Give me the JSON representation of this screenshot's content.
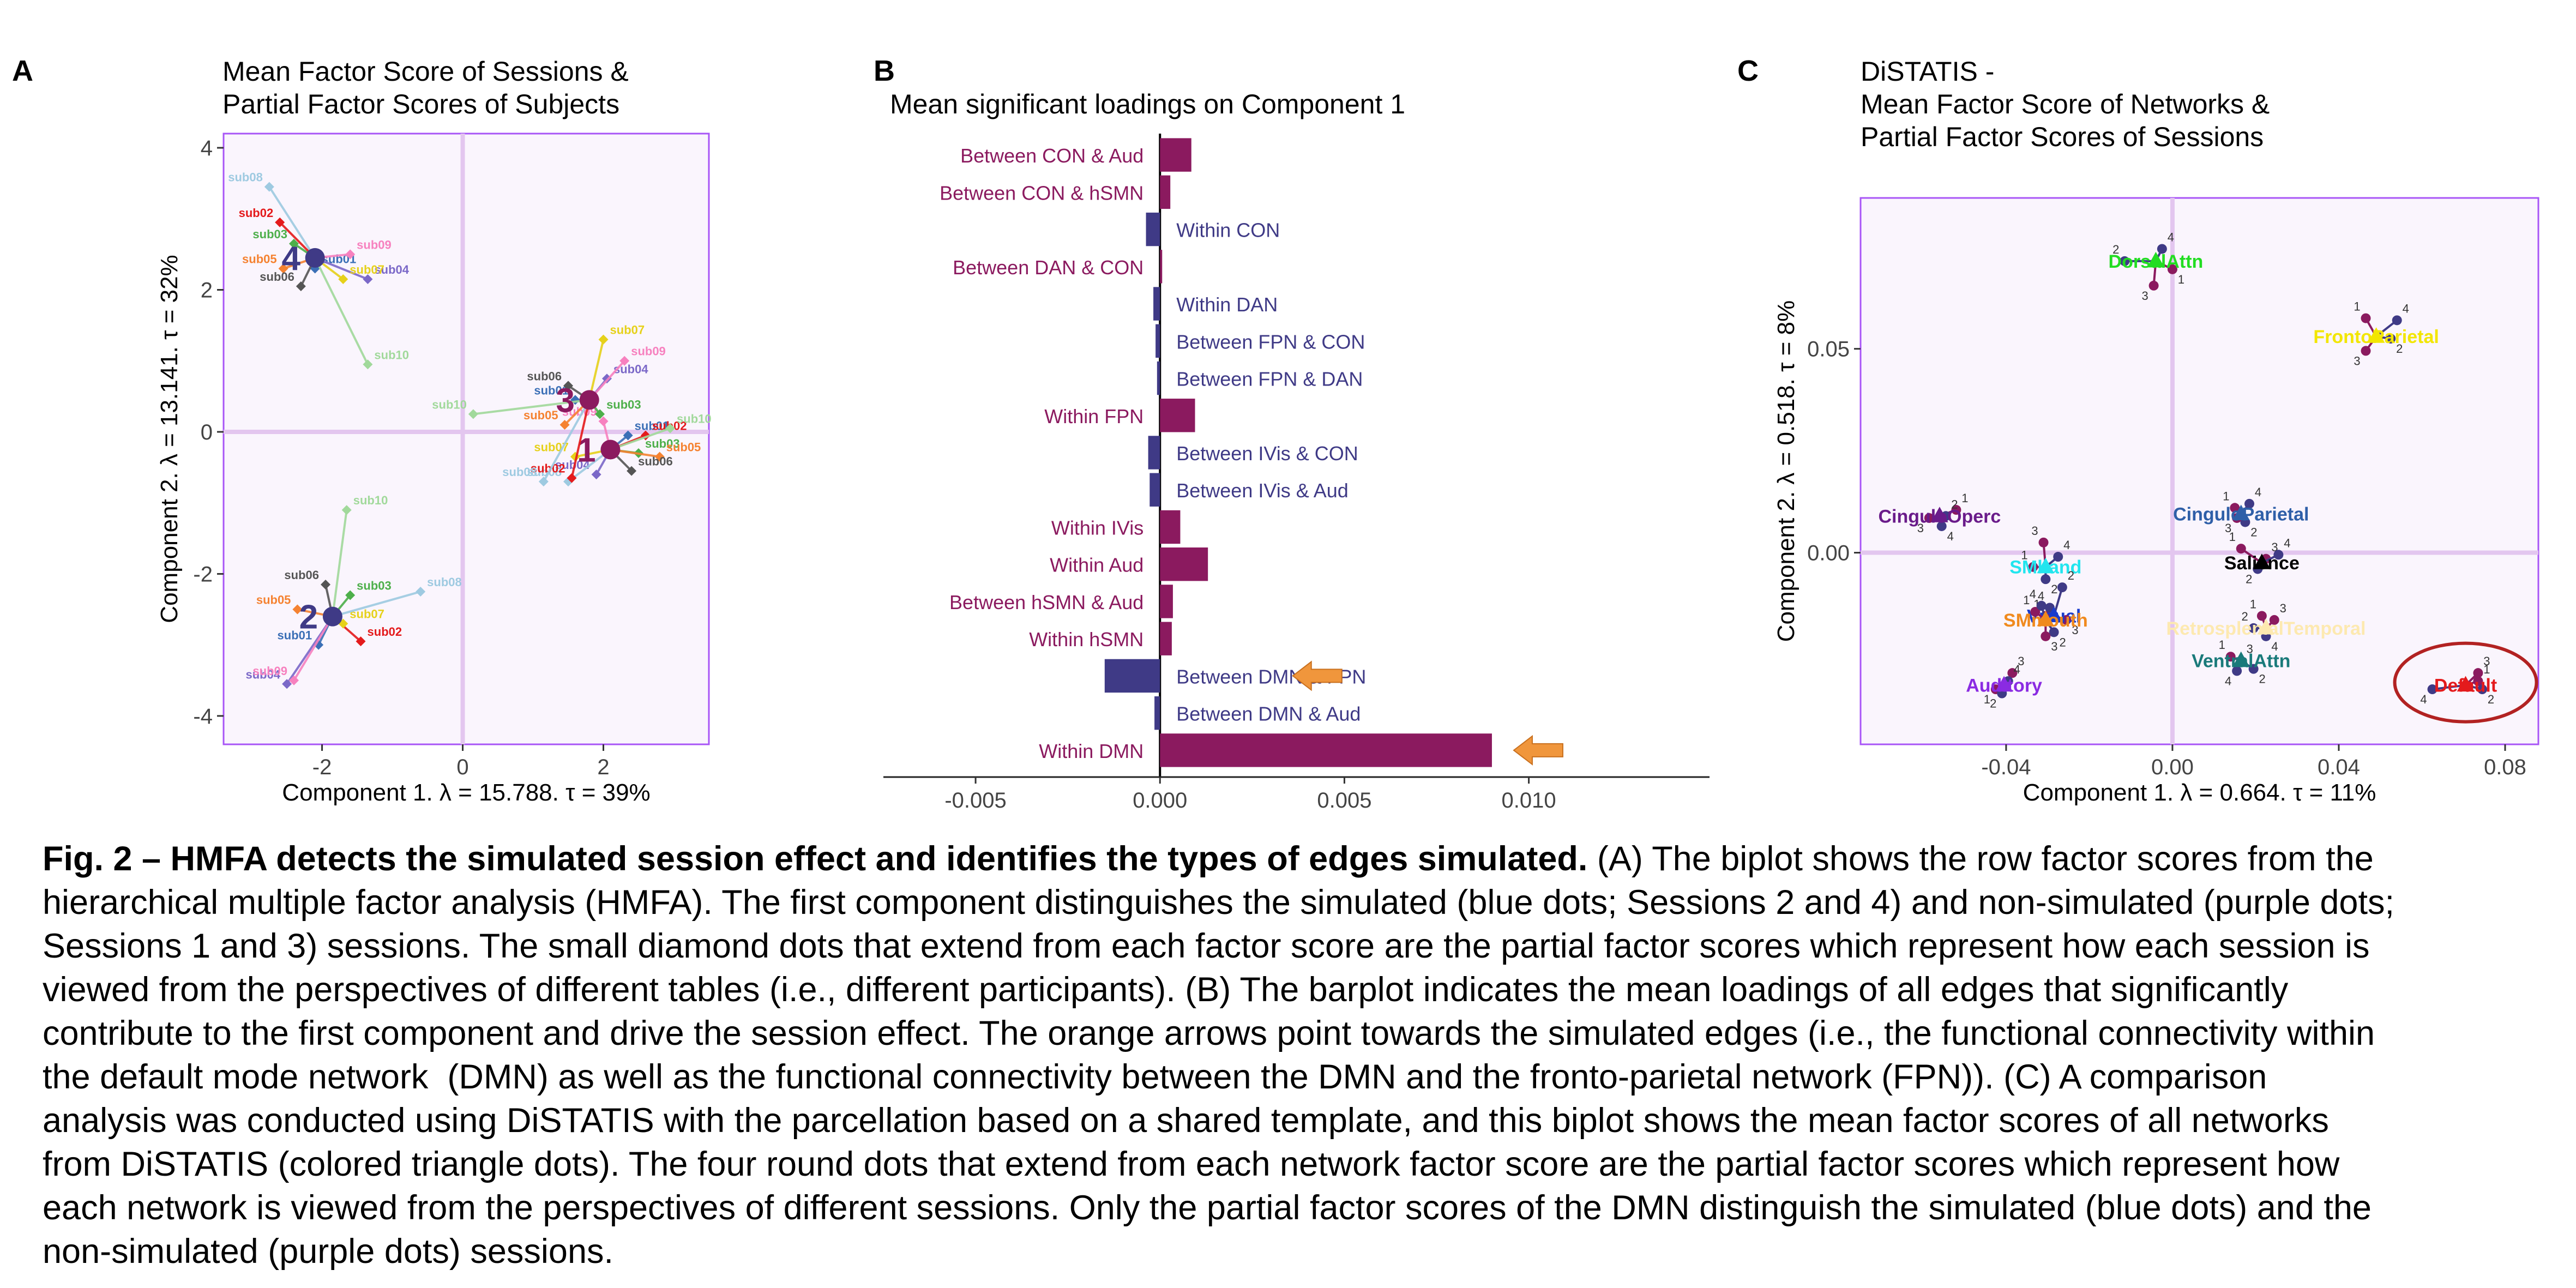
{
  "panels": {
    "a": {
      "letter": "A",
      "title_line1": "Mean Factor Score of Sessions &",
      "title_line2": "Partial Factor Scores of Subjects"
    },
    "b": {
      "letter": "B",
      "title": "Mean significant loadings on Component 1"
    },
    "c": {
      "letter": "C",
      "title_line1": "DiSTATIS -",
      "title_line2": "Mean Factor Score of Networks &",
      "title_line3": "Partial Factor Scores of Sessions"
    }
  },
  "colors": {
    "plot_border": "#a855f7",
    "plot_bg": "#faf5fd",
    "zero_line": "#e3c6ef",
    "simulated": "#3f3a86",
    "non_simulated": "#8b1a5f",
    "arrow": "#f0963c",
    "highlight_ring": "#b22222"
  },
  "chart_data": [
    {
      "type": "scatter",
      "panel": "A",
      "title": "Mean Factor Score of Sessions & Partial Factor Scores of Subjects",
      "xlabel": "Component 1.   λ = 15.788.  τ = 39%",
      "ylabel": "Component 2.   λ = 13.141.  τ = 32%",
      "xlim": [
        -3.4,
        3.5
      ],
      "ylim": [
        -4.4,
        4.2
      ],
      "xticks": [
        -2,
        0,
        2
      ],
      "yticks": [
        -4,
        -2,
        0,
        2,
        4
      ],
      "grid": false,
      "sessions": [
        {
          "label": "1",
          "x": 2.1,
          "y": -0.25,
          "color": "#8b1a5f",
          "partials": [
            {
              "name": "sub01",
              "x": 2.35,
              "y": -0.05,
              "color": "#3b6fb6"
            },
            {
              "name": "sub02",
              "x": 2.6,
              "y": -0.05,
              "color": "#e41a1c"
            },
            {
              "name": "sub03",
              "x": 2.5,
              "y": -0.3,
              "color": "#4daf4a"
            },
            {
              "name": "sub04",
              "x": 1.9,
              "y": -0.6,
              "color": "#7b68c8"
            },
            {
              "name": "sub05",
              "x": 2.8,
              "y": -0.35,
              "color": "#f58231"
            },
            {
              "name": "sub06",
              "x": 2.4,
              "y": -0.55,
              "color": "#555555"
            },
            {
              "name": "sub07",
              "x": 1.6,
              "y": -0.35,
              "color": "#e6d11a"
            },
            {
              "name": "sub08",
              "x": 1.5,
              "y": -0.7,
              "color": "#9ecae1"
            },
            {
              "name": "sub09",
              "x": 2.0,
              "y": 0.15,
              "color": "#f781bf"
            },
            {
              "name": "sub10",
              "x": 2.95,
              "y": 0.05,
              "color": "#a1d99b"
            }
          ]
        },
        {
          "label": "2",
          "x": -1.85,
          "y": -2.6,
          "color": "#3f3a86",
          "partials": [
            {
              "name": "sub01",
              "x": -2.05,
              "y": -3.0,
              "color": "#3b6fb6"
            },
            {
              "name": "sub02",
              "x": -1.45,
              "y": -2.95,
              "color": "#e41a1c"
            },
            {
              "name": "sub03",
              "x": -1.6,
              "y": -2.3,
              "color": "#4daf4a"
            },
            {
              "name": "sub04",
              "x": -2.5,
              "y": -3.55,
              "color": "#7b68c8"
            },
            {
              "name": "sub05",
              "x": -2.35,
              "y": -2.5,
              "color": "#f58231"
            },
            {
              "name": "sub06",
              "x": -1.95,
              "y": -2.15,
              "color": "#555555"
            },
            {
              "name": "sub07",
              "x": -1.7,
              "y": -2.7,
              "color": "#e6d11a"
            },
            {
              "name": "sub08",
              "x": -0.6,
              "y": -2.25,
              "color": "#9ecae1"
            },
            {
              "name": "sub09",
              "x": -2.4,
              "y": -3.5,
              "color": "#f781bf"
            },
            {
              "name": "sub10",
              "x": -1.65,
              "y": -1.1,
              "color": "#a1d99b"
            }
          ]
        },
        {
          "label": "3",
          "x": 1.8,
          "y": 0.45,
          "color": "#8b1a5f",
          "partials": [
            {
              "name": "sub01",
              "x": 1.6,
              "y": 0.45,
              "color": "#3b6fb6"
            },
            {
              "name": "sub02",
              "x": 1.55,
              "y": -0.65,
              "color": "#e41a1c"
            },
            {
              "name": "sub03",
              "x": 1.95,
              "y": 0.25,
              "color": "#4daf4a"
            },
            {
              "name": "sub04",
              "x": 2.05,
              "y": 0.75,
              "color": "#7b68c8"
            },
            {
              "name": "sub05",
              "x": 1.45,
              "y": 0.1,
              "color": "#f58231"
            },
            {
              "name": "sub06",
              "x": 1.5,
              "y": 0.65,
              "color": "#555555"
            },
            {
              "name": "sub07",
              "x": 2.0,
              "y": 1.3,
              "color": "#e6d11a"
            },
            {
              "name": "sub08",
              "x": 1.15,
              "y": -0.7,
              "color": "#9ecae1"
            },
            {
              "name": "sub09",
              "x": 2.3,
              "y": 1.0,
              "color": "#f781bf"
            },
            {
              "name": "sub10",
              "x": 0.15,
              "y": 0.25,
              "color": "#a1d99b"
            }
          ]
        },
        {
          "label": "4",
          "x": -2.1,
          "y": 2.45,
          "color": "#3f3a86",
          "partials": [
            {
              "name": "sub01",
              "x": -2.1,
              "y": 2.3,
              "color": "#3b6fb6"
            },
            {
              "name": "sub02",
              "x": -2.6,
              "y": 2.95,
              "color": "#e41a1c"
            },
            {
              "name": "sub03",
              "x": -2.4,
              "y": 2.65,
              "color": "#4daf4a"
            },
            {
              "name": "sub04",
              "x": -1.35,
              "y": 2.15,
              "color": "#7b68c8"
            },
            {
              "name": "sub05",
              "x": -2.55,
              "y": 2.3,
              "color": "#f58231"
            },
            {
              "name": "sub06",
              "x": -2.3,
              "y": 2.05,
              "color": "#555555"
            },
            {
              "name": "sub07",
              "x": -1.7,
              "y": 2.15,
              "color": "#e6d11a"
            },
            {
              "name": "sub08",
              "x": -2.75,
              "y": 3.45,
              "color": "#9ecae1"
            },
            {
              "name": "sub09",
              "x": -1.6,
              "y": 2.5,
              "color": "#f781bf"
            },
            {
              "name": "sub10",
              "x": -1.35,
              "y": 0.95,
              "color": "#a1d99b"
            }
          ]
        }
      ]
    },
    {
      "type": "bar",
      "orientation": "horizontal",
      "panel": "B",
      "title": "Mean significant loadings on Component 1",
      "xlim": [
        -0.0075,
        0.0149
      ],
      "xticks": [
        -0.005,
        0.0,
        0.005,
        0.01
      ],
      "xtick_labels": [
        "-0.005",
        "0.000",
        "0.005",
        "0.010"
      ],
      "grid": false,
      "bars": [
        {
          "label": "Between CON & Aud",
          "value": 0.00085,
          "group": "non_simulated"
        },
        {
          "label": "Between CON & hSMN",
          "value": 0.00028,
          "group": "non_simulated"
        },
        {
          "label": "Within CON",
          "value": -0.00038,
          "group": "simulated"
        },
        {
          "label": "Between DAN & CON",
          "value": 2e-05,
          "group": "non_simulated"
        },
        {
          "label": "Within DAN",
          "value": -0.00018,
          "group": "simulated"
        },
        {
          "label": "Between FPN & CON",
          "value": -0.00012,
          "group": "simulated"
        },
        {
          "label": "Between FPN & DAN",
          "value": -8e-05,
          "group": "simulated"
        },
        {
          "label": "Within FPN",
          "value": 0.00095,
          "group": "non_simulated"
        },
        {
          "label": "Between IVis & CON",
          "value": -0.00032,
          "group": "simulated"
        },
        {
          "label": "Between IVis & Aud",
          "value": -0.00028,
          "group": "simulated"
        },
        {
          "label": "Within IVis",
          "value": 0.00055,
          "group": "non_simulated"
        },
        {
          "label": "Within Aud",
          "value": 0.0013,
          "group": "non_simulated"
        },
        {
          "label": "Between hSMN & Aud",
          "value": 0.00035,
          "group": "non_simulated"
        },
        {
          "label": "Within hSMN",
          "value": 0.00032,
          "group": "non_simulated"
        },
        {
          "label": "Between DMN & FPN",
          "value": -0.0015,
          "group": "simulated",
          "arrow": true
        },
        {
          "label": "Between DMN & Aud",
          "value": -0.00015,
          "group": "simulated"
        },
        {
          "label": "Within DMN",
          "value": 0.009,
          "group": "non_simulated",
          "arrow": true
        }
      ]
    },
    {
      "type": "scatter",
      "panel": "C",
      "title": "DiSTATIS - Mean Factor Score of Networks & Partial Factor Scores of Sessions",
      "xlabel": "Component 1.   λ = 0.664.  τ = 11%",
      "ylabel": "Component 2.   λ = 0.518.  τ = 8%",
      "xlim": [
        -0.075,
        0.088
      ],
      "ylim": [
        -0.047,
        0.087
      ],
      "xticks": [
        -0.04,
        0.0,
        0.04,
        0.08
      ],
      "xtick_labels": [
        "-0.04",
        "0.00",
        "0.04",
        "0.08"
      ],
      "yticks": [
        0.0,
        0.05
      ],
      "ytick_labels": [
        "0.00",
        "0.05"
      ],
      "grid": false,
      "networks": [
        {
          "name": "DorsalAttn",
          "x": -0.004,
          "y": 0.0715,
          "color": "#22dd22",
          "partials": [
            {
              "label": "1",
              "x": 0.0,
              "y": 0.0695
            },
            {
              "label": "2",
              "x": -0.0115,
              "y": 0.0715
            },
            {
              "label": "3",
              "x": -0.0045,
              "y": 0.0655
            },
            {
              "label": "4",
              "x": -0.0025,
              "y": 0.0745
            }
          ]
        },
        {
          "name": "FrontoParietal",
          "x": 0.049,
          "y": 0.053,
          "color": "#f2e600",
          "partials": [
            {
              "label": "1",
              "x": 0.0465,
              "y": 0.0575
            },
            {
              "label": "2",
              "x": 0.0525,
              "y": 0.0525
            },
            {
              "label": "3",
              "x": 0.0465,
              "y": 0.0495
            },
            {
              "label": "4",
              "x": 0.054,
              "y": 0.057
            }
          ]
        },
        {
          "name": "CinguloParietal",
          "x": 0.0165,
          "y": 0.0095,
          "color": "#2f5fa8",
          "partials": [
            {
              "label": "1",
              "x": 0.015,
              "y": 0.011
            },
            {
              "label": "2",
              "x": 0.0175,
              "y": 0.0075
            },
            {
              "label": "3",
              "x": 0.0155,
              "y": 0.0085
            },
            {
              "label": "4",
              "x": 0.0185,
              "y": 0.012
            }
          ]
        },
        {
          "name": "CinguloOperc",
          "x": -0.056,
          "y": 0.009,
          "color": "#6a1b8a",
          "partials": [
            {
              "label": "1",
              "x": -0.052,
              "y": 0.0105
            },
            {
              "label": "2",
              "x": -0.0545,
              "y": 0.009
            },
            {
              "label": "3",
              "x": -0.0585,
              "y": 0.0085
            },
            {
              "label": "4",
              "x": -0.0555,
              "y": 0.0065
            }
          ]
        },
        {
          "name": "Salience",
          "x": 0.0215,
          "y": -0.0025,
          "color": "#000000",
          "partials": [
            {
              "label": "1",
              "x": 0.0165,
              "y": 0.001
            },
            {
              "label": "2",
              "x": 0.0205,
              "y": -0.004
            },
            {
              "label": "3",
              "x": 0.0225,
              "y": -0.0015
            },
            {
              "label": "4",
              "x": 0.0255,
              "y": -0.0005
            }
          ]
        },
        {
          "name": "SMhand",
          "x": -0.0305,
          "y": -0.0035,
          "color": "#22e5ee",
          "partials": [
            {
              "label": "1",
              "x": -0.0335,
              "y": -0.0035
            },
            {
              "label": "2",
              "x": -0.0305,
              "y": -0.0065
            },
            {
              "label": "3",
              "x": -0.031,
              "y": 0.0025
            },
            {
              "label": "4",
              "x": -0.0275,
              "y": -0.001
            }
          ]
        },
        {
          "name": "Visual",
          "x": -0.0285,
          "y": -0.0155,
          "color": "#1a3ccc",
          "partials": [
            {
              "label": "1",
              "x": -0.0305,
              "y": -0.0155
            },
            {
              "label": "2",
              "x": -0.0265,
              "y": -0.0085
            },
            {
              "label": "3",
              "x": -0.0255,
              "y": -0.0165
            },
            {
              "label": "4",
              "x": -0.0295,
              "y": -0.0135
            }
          ]
        },
        {
          "name": "SMmouth",
          "x": -0.0305,
          "y": -0.0165,
          "color": "#f08a1e",
          "partials": [
            {
              "label": "1",
              "x": -0.033,
              "y": -0.0145
            },
            {
              "label": "2",
              "x": -0.0285,
              "y": -0.0195
            },
            {
              "label": "3",
              "x": -0.0305,
              "y": -0.0205
            },
            {
              "label": "4",
              "x": -0.0315,
              "y": -0.013
            }
          ]
        },
        {
          "name": "RetrosplenialTemporal",
          "x": 0.0225,
          "y": -0.0185,
          "color": "#fde9b0",
          "partials": [
            {
              "label": "1",
              "x": 0.0215,
              "y": -0.0155
            },
            {
              "label": "2",
              "x": 0.0195,
              "y": -0.0185
            },
            {
              "label": "3",
              "x": 0.0245,
              "y": -0.0165
            },
            {
              "label": "4",
              "x": 0.0225,
              "y": -0.0205
            }
          ]
        },
        {
          "name": "VentralAttn",
          "x": 0.0165,
          "y": -0.0265,
          "color": "#1a7a7a",
          "partials": [
            {
              "label": "1",
              "x": 0.014,
              "y": -0.0255
            },
            {
              "label": "2",
              "x": 0.0195,
              "y": -0.0285
            },
            {
              "label": "3",
              "x": 0.0165,
              "y": -0.0265
            },
            {
              "label": "4",
              "x": 0.0155,
              "y": -0.029
            }
          ]
        },
        {
          "name": "Auditory",
          "x": -0.0405,
          "y": -0.0325,
          "color": "#8a2be2",
          "partials": [
            {
              "label": "1",
              "x": -0.0425,
              "y": -0.0335
            },
            {
              "label": "2",
              "x": -0.041,
              "y": -0.0345
            },
            {
              "label": "3",
              "x": -0.0385,
              "y": -0.0295
            },
            {
              "label": "4",
              "x": -0.0395,
              "y": -0.0315
            }
          ]
        },
        {
          "name": "Default",
          "x": 0.0705,
          "y": -0.0325,
          "color": "#e41a1c",
          "highlight": true,
          "partials": [
            {
              "label": "1",
              "x": 0.0735,
              "y": -0.0315
            },
            {
              "label": "2",
              "x": 0.0745,
              "y": -0.0335
            },
            {
              "label": "3",
              "x": 0.0735,
              "y": -0.0295
            },
            {
              "label": "4",
              "x": 0.0625,
              "y": -0.0335
            }
          ]
        }
      ]
    }
  ],
  "caption": {
    "bold_lead": "Fig. 2 – HMFA detects the simulated session effect and identifies the types of edges simulated.",
    "line1_rest": " (A) The biplot shows the row factor scores from the",
    "lines": [
      "hierarchical multiple factor analysis (HMFA). The first component distinguishes the simulated (blue dots; Sessions 2 and 4) and non-simulated (purple dots;",
      "Sessions 1 and 3) sessions. The small diamond dots that extend from each factor score are the partial factor scores which represent how each session is",
      "viewed from the perspectives of different tables (i.e., different participants). (B) The barplot indicates the mean loadings of all edges that significantly",
      "contribute to the first component and drive the session effect. The orange arrows point towards the simulated edges (i.e., the functional connectivity within",
      "the default mode network  (DMN) as well as the functional connectivity between the DMN and the fronto-parietal network (FPN)). (C) A comparison",
      "analysis was conducted using DiSTATIS with the parcellation based on a shared template, and this biplot shows the mean factor scores of all networks",
      "from DiSTATIS (colored triangle dots). The four round dots that extend from each network factor score are the partial factor scores which represent how",
      "each network is viewed from the perspectives of different sessions. Only the partial factor scores of the DMN distinguish the simulated (blue dots) and the",
      "non-simulated (purple dots) sessions."
    ]
  }
}
